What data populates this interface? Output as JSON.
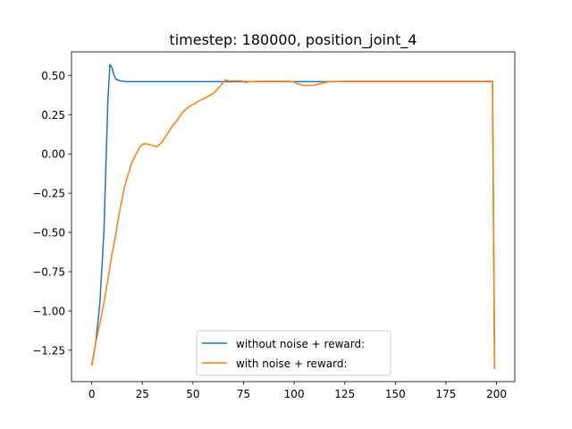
{
  "chart_data": {
    "type": "line",
    "title": "timestep: 180000, position_joint_4",
    "xlabel": "",
    "ylabel": "",
    "xlim": [
      -10,
      209
    ],
    "ylim": [
      -1.45,
      0.65
    ],
    "x_ticks": [
      0,
      25,
      50,
      75,
      100,
      125,
      150,
      175,
      200
    ],
    "y_ticks": [
      0.5,
      0.25,
      0.0,
      -0.25,
      -0.5,
      -0.75,
      -1.0,
      -1.25
    ],
    "x_tick_labels": [
      "0",
      "25",
      "50",
      "75",
      "100",
      "125",
      "150",
      "175",
      "200"
    ],
    "y_tick_labels": [
      "0.50",
      "0.25",
      "0.00",
      "−0.25",
      "−0.50",
      "−0.75",
      "−1.00",
      "−1.25"
    ],
    "grid": false,
    "legend_position": "lower center",
    "series": [
      {
        "name": "without noise + reward:",
        "color": "#1f77b4",
        "points": [
          [
            0,
            -1.35
          ],
          [
            2,
            -1.2
          ],
          [
            4,
            -0.95
          ],
          [
            6,
            -0.5
          ],
          [
            8,
            0.35
          ],
          [
            9,
            0.57
          ],
          [
            10,
            0.55
          ],
          [
            11,
            0.5
          ],
          [
            12,
            0.475
          ],
          [
            14,
            0.465
          ],
          [
            17,
            0.46
          ],
          [
            20,
            0.46
          ],
          [
            40,
            0.46
          ],
          [
            60,
            0.46
          ],
          [
            80,
            0.46
          ],
          [
            100,
            0.46
          ],
          [
            120,
            0.46
          ],
          [
            140,
            0.46
          ],
          [
            160,
            0.46
          ],
          [
            180,
            0.46
          ],
          [
            198,
            0.46
          ],
          [
            199,
            -1.37
          ]
        ]
      },
      {
        "name": "with noise + reward:",
        "color": "#ff7f0e",
        "points": [
          [
            0,
            -1.35
          ],
          [
            2,
            -1.2
          ],
          [
            4,
            -1.08
          ],
          [
            6,
            -0.95
          ],
          [
            8,
            -0.8
          ],
          [
            10,
            -0.64
          ],
          [
            12,
            -0.5
          ],
          [
            14,
            -0.35
          ],
          [
            16,
            -0.22
          ],
          [
            18,
            -0.13
          ],
          [
            20,
            -0.05
          ],
          [
            22,
            0.0
          ],
          [
            24,
            0.05
          ],
          [
            26,
            0.065
          ],
          [
            28,
            0.06
          ],
          [
            30,
            0.055
          ],
          [
            32,
            0.045
          ],
          [
            34,
            0.065
          ],
          [
            36,
            0.1
          ],
          [
            38,
            0.14
          ],
          [
            40,
            0.18
          ],
          [
            42,
            0.21
          ],
          [
            44,
            0.25
          ],
          [
            46,
            0.28
          ],
          [
            48,
            0.3
          ],
          [
            50,
            0.315
          ],
          [
            52,
            0.33
          ],
          [
            54,
            0.345
          ],
          [
            56,
            0.355
          ],
          [
            58,
            0.37
          ],
          [
            60,
            0.385
          ],
          [
            62,
            0.41
          ],
          [
            64,
            0.44
          ],
          [
            66,
            0.47
          ],
          [
            68,
            0.465
          ],
          [
            70,
            0.465
          ],
          [
            74,
            0.465
          ],
          [
            76,
            0.455
          ],
          [
            78,
            0.46
          ],
          [
            82,
            0.462
          ],
          [
            90,
            0.462
          ],
          [
            98,
            0.462
          ],
          [
            100,
            0.458
          ],
          [
            102,
            0.445
          ],
          [
            105,
            0.435
          ],
          [
            110,
            0.438
          ],
          [
            114,
            0.45
          ],
          [
            117,
            0.46
          ],
          [
            125,
            0.462
          ],
          [
            140,
            0.462
          ],
          [
            160,
            0.462
          ],
          [
            180,
            0.462
          ],
          [
            198,
            0.462
          ],
          [
            199,
            -1.37
          ]
        ]
      }
    ]
  }
}
